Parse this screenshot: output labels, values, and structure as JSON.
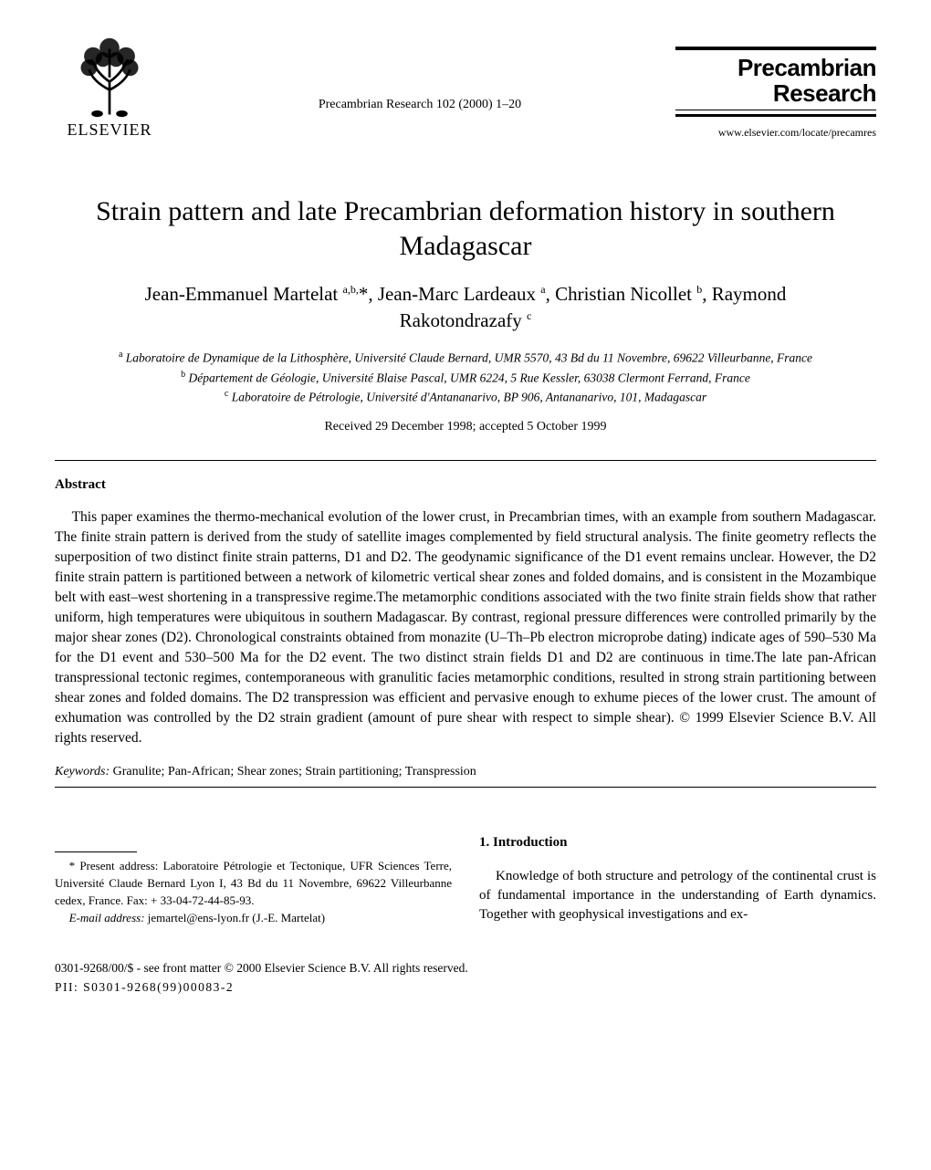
{
  "publisher": {
    "name": "ELSEVIER",
    "url": "www.elsevier.com/locate/precamres"
  },
  "journal": {
    "reference": "Precambrian Research 102 (2000) 1–20",
    "logo_line1": "Precambrian",
    "logo_line2": "Research"
  },
  "article": {
    "title": "Strain pattern and late Precambrian deformation history in southern Madagascar",
    "authors_html": "Jean-Emmanuel Martelat <sup>a,b,</sup>*, Jean-Marc Lardeaux <sup>a</sup>, Christian Nicollet <sup>b</sup>, Raymond Rakotondrazafy <sup>c</sup>",
    "affiliations": [
      "<sup>a</sup> Laboratoire de Dynamique de la Lithosphère, Université Claude Bernard, UMR 5570, 43 Bd du 11 Novembre, 69622 Villeurbanne, France",
      "<sup>b</sup> Département de Géologie, Université Blaise Pascal, UMR 6224, 5 Rue Kessler, 63038 Clermont Ferrand, France",
      "<sup>c</sup> Laboratoire de Pétrologie, Université d'Antananarivo, BP 906, Antananarivo, 101, Madagascar"
    ],
    "received": "Received 29 December 1998; accepted 5 October 1999"
  },
  "abstract": {
    "heading": "Abstract",
    "body": "This paper examines the thermo-mechanical evolution of the lower crust, in Precambrian times, with an example from southern Madagascar. The finite strain pattern is derived from the study of satellite images complemented by field structural analysis. The finite geometry reflects the superposition of two distinct finite strain patterns, D1 and D2. The geodynamic significance of the D1 event remains unclear. However, the D2 finite strain pattern is partitioned between a network of kilometric vertical shear zones and folded domains, and is consistent in the Mozambique belt with east–west shortening in a transpressive regime.The metamorphic conditions associated with the two finite strain fields show that rather uniform, high temperatures were ubiquitous in southern Madagascar. By contrast, regional pressure differences were controlled primarily by the major shear zones (D2). Chronological constraints obtained from monazite (U–Th–Pb electron microprobe dating) indicate ages of 590–530 Ma for the D1 event and 530–500 Ma for the D2 event. The two distinct strain fields D1 and D2 are continuous in time.The late pan-African transpressional tectonic regimes, contemporaneous with granulitic facies metamorphic conditions, resulted in strong strain partitioning between shear zones and folded domains. The D2 transpression was efficient and pervasive enough to exhume pieces of the lower crust. The amount of exhumation was controlled by the D2 strain gradient (amount of pure shear with respect to simple shear). © 1999 Elsevier Science B.V. All rights reserved.",
    "keywords_label": "Keywords:",
    "keywords": "Granulite; Pan-African; Shear zones; Strain partitioning; Transpression"
  },
  "footnote": {
    "address": "* Present address: Laboratoire Pétrologie et Tectonique, UFR Sciences Terre, Université Claude Bernard Lyon I, 43 Bd du 11 Novembre, 69622 Villeurbanne cedex, France. Fax: + 33-04-72-44-85-93.",
    "email_label": "E-mail address:",
    "email": "jemartel@ens-lyon.fr (J.-E. Martelat)"
  },
  "introduction": {
    "heading": "1. Introduction",
    "text": "Knowledge of both structure and petrology of the continental crust is of fundamental importance in the understanding of Earth dynamics. Together with geophysical investigations and ex-"
  },
  "footer": {
    "copyright": "0301-9268/00/$ - see front matter © 2000 Elsevier Science B.V. All rights reserved.",
    "pii": "PII: S0301-9268(99)00083-2"
  }
}
